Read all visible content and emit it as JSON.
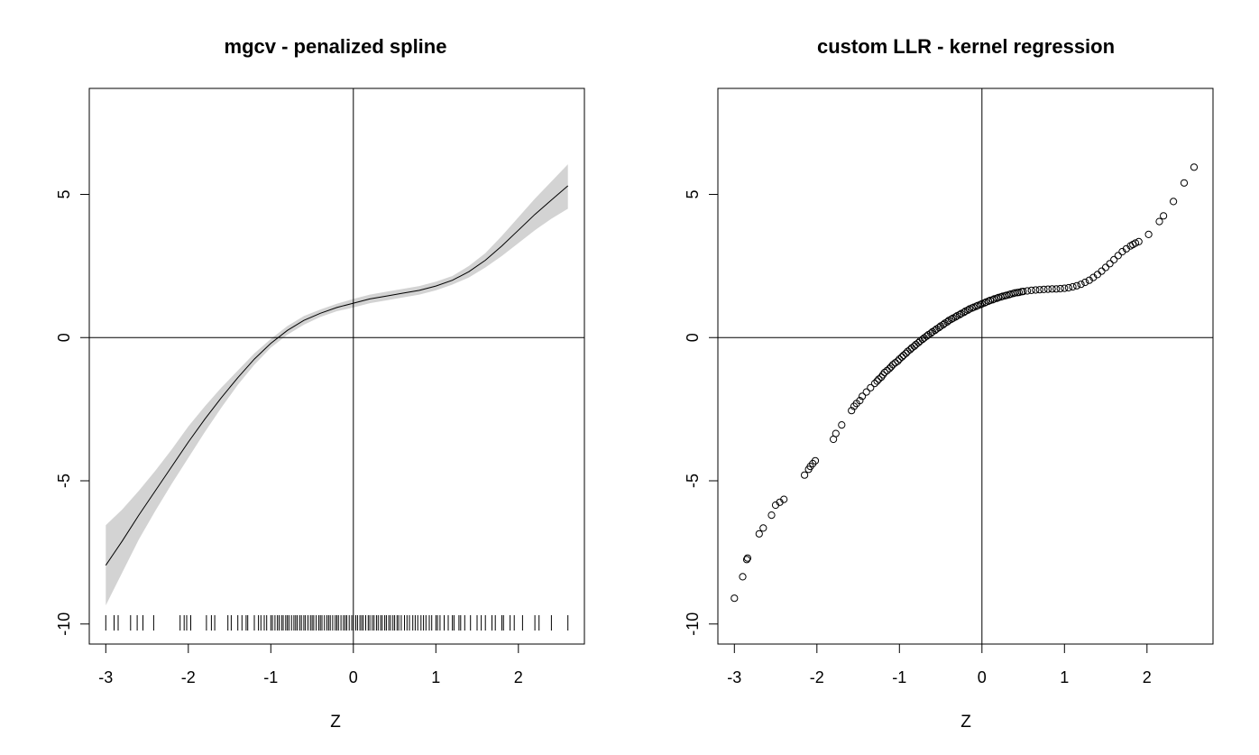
{
  "chart_data": [
    {
      "type": "line",
      "title": "mgcv - penalized spline",
      "xlabel": "Z",
      "ylabel": "",
      "xlim": [
        -3.2,
        2.8
      ],
      "ylim": [
        -10.7,
        8.7
      ],
      "xticks": [
        "-3",
        "-2",
        "-1",
        "0",
        "1",
        "2"
      ],
      "yticks": [
        "-10",
        "-5",
        "0",
        "5"
      ],
      "reference_lines": {
        "h": 0,
        "v": 0
      },
      "grid": false,
      "legend": "none",
      "colors": {
        "line": "#000000",
        "band": "#d3d3d3"
      },
      "series": [
        {
          "kind": "fit",
          "x": [
            -3.0,
            -2.8,
            -2.6,
            -2.4,
            -2.2,
            -2.0,
            -1.8,
            -1.6,
            -1.4,
            -1.2,
            -1.0,
            -0.8,
            -0.6,
            -0.4,
            -0.2,
            0.0,
            0.2,
            0.4,
            0.6,
            0.8,
            1.0,
            1.2,
            1.4,
            1.6,
            1.8,
            2.0,
            2.2,
            2.4,
            2.6
          ],
          "y": [
            -7.95,
            -7.1,
            -6.2,
            -5.35,
            -4.5,
            -3.65,
            -2.85,
            -2.1,
            -1.4,
            -0.75,
            -0.2,
            0.25,
            0.6,
            0.85,
            1.05,
            1.2,
            1.35,
            1.45,
            1.55,
            1.65,
            1.8,
            2.0,
            2.3,
            2.7,
            3.2,
            3.75,
            4.3,
            4.8,
            5.3
          ],
          "lower": [
            -9.35,
            -8.2,
            -7.05,
            -6.05,
            -5.1,
            -4.2,
            -3.3,
            -2.45,
            -1.65,
            -0.95,
            -0.35,
            0.1,
            0.45,
            0.72,
            0.92,
            1.05,
            1.2,
            1.3,
            1.4,
            1.5,
            1.65,
            1.85,
            2.1,
            2.45,
            2.85,
            3.3,
            3.75,
            4.15,
            4.5
          ],
          "upper": [
            -6.55,
            -6.0,
            -5.35,
            -4.65,
            -3.9,
            -3.1,
            -2.4,
            -1.75,
            -1.15,
            -0.55,
            -0.05,
            0.4,
            0.75,
            0.98,
            1.18,
            1.35,
            1.5,
            1.6,
            1.7,
            1.8,
            1.95,
            2.15,
            2.5,
            2.95,
            3.55,
            4.2,
            4.85,
            5.45,
            6.05
          ]
        }
      ],
      "rug_x": [
        -3.0,
        -2.9,
        -2.85,
        -2.7,
        -2.62,
        -2.55,
        -2.42,
        -2.1,
        -2.05,
        -2.02,
        -1.97,
        -1.78,
        -1.72,
        -1.68,
        -1.52,
        -1.48,
        -1.4,
        -1.35,
        -1.3,
        -1.28,
        -1.2,
        -1.15,
        -1.12,
        -1.08,
        -1.05,
        -1.0,
        -0.98,
        -0.95,
        -0.92,
        -0.9,
        -0.87,
        -0.85,
        -0.82,
        -0.8,
        -0.78,
        -0.75,
        -0.72,
        -0.7,
        -0.68,
        -0.65,
        -0.63,
        -0.6,
        -0.58,
        -0.55,
        -0.52,
        -0.5,
        -0.48,
        -0.45,
        -0.42,
        -0.4,
        -0.38,
        -0.35,
        -0.32,
        -0.3,
        -0.28,
        -0.25,
        -0.22,
        -0.2,
        -0.18,
        -0.15,
        -0.12,
        -0.1,
        -0.08,
        -0.05,
        -0.02,
        0.0,
        0.03,
        0.05,
        0.08,
        0.1,
        0.12,
        0.15,
        0.18,
        0.2,
        0.23,
        0.25,
        0.28,
        0.3,
        0.33,
        0.35,
        0.38,
        0.4,
        0.43,
        0.45,
        0.48,
        0.5,
        0.53,
        0.55,
        0.58,
        0.62,
        0.65,
        0.68,
        0.72,
        0.75,
        0.78,
        0.82,
        0.85,
        0.88,
        0.92,
        0.95,
        1.0,
        1.02,
        1.05,
        1.1,
        1.15,
        1.2,
        1.22,
        1.28,
        1.3,
        1.35,
        1.42,
        1.5,
        1.55,
        1.6,
        1.68,
        1.72,
        1.8,
        1.82,
        1.9,
        1.95,
        2.05,
        2.2,
        2.25,
        2.4,
        2.6
      ]
    },
    {
      "type": "scatter",
      "title": "custom LLR - kernel regression",
      "xlabel": "Z",
      "ylabel": "",
      "xlim": [
        -3.2,
        2.8
      ],
      "ylim": [
        -10.7,
        8.7
      ],
      "xticks": [
        "-3",
        "-2",
        "-1",
        "0",
        "1",
        "2"
      ],
      "yticks": [
        "-10",
        "-5",
        "0",
        "5"
      ],
      "reference_lines": {
        "h": 0,
        "v": 0
      },
      "grid": false,
      "legend": "none",
      "colors": {
        "point": "#000000"
      },
      "series": [
        {
          "kind": "points",
          "x": [
            -3.0,
            -2.9,
            -2.85,
            -2.84,
            -2.7,
            -2.65,
            -2.55,
            -2.5,
            -2.45,
            -2.4,
            -2.15,
            -2.1,
            -2.08,
            -2.05,
            -2.02,
            -1.8,
            -1.77,
            -1.7,
            -1.58,
            -1.55,
            -1.52,
            -1.48,
            -1.45,
            -1.4,
            -1.35,
            -1.3,
            -1.27,
            -1.25,
            -1.22,
            -1.2,
            -1.18,
            -1.15,
            -1.12,
            -1.1,
            -1.08,
            -1.05,
            -1.02,
            -1.0,
            -0.97,
            -0.95,
            -0.92,
            -0.9,
            -0.87,
            -0.85,
            -0.82,
            -0.8,
            -0.77,
            -0.75,
            -0.72,
            -0.7,
            -0.67,
            -0.65,
            -0.62,
            -0.6,
            -0.57,
            -0.55,
            -0.52,
            -0.5,
            -0.47,
            -0.45,
            -0.42,
            -0.4,
            -0.37,
            -0.35,
            -0.32,
            -0.3,
            -0.27,
            -0.25,
            -0.22,
            -0.2,
            -0.17,
            -0.15,
            -0.12,
            -0.1,
            -0.07,
            -0.05,
            -0.02,
            0.0,
            0.03,
            0.05,
            0.08,
            0.1,
            0.13,
            0.15,
            0.18,
            0.2,
            0.23,
            0.25,
            0.28,
            0.3,
            0.33,
            0.35,
            0.38,
            0.4,
            0.43,
            0.45,
            0.48,
            0.5,
            0.55,
            0.6,
            0.65,
            0.7,
            0.75,
            0.8,
            0.85,
            0.9,
            0.95,
            1.0,
            1.05,
            1.1,
            1.15,
            1.2,
            1.25,
            1.3,
            1.35,
            1.4,
            1.45,
            1.5,
            1.55,
            1.6,
            1.65,
            1.7,
            1.75,
            1.8,
            1.83,
            1.86,
            1.9,
            2.02,
            2.15,
            2.2,
            2.32,
            2.45,
            2.57
          ],
          "y": [
            -9.1,
            -8.35,
            -7.75,
            -7.7,
            -6.85,
            -6.65,
            -6.2,
            -5.85,
            -5.75,
            -5.65,
            -4.8,
            -4.6,
            -4.5,
            -4.4,
            -4.3,
            -3.55,
            -3.35,
            -3.05,
            -2.55,
            -2.4,
            -2.3,
            -2.2,
            -2.05,
            -1.9,
            -1.75,
            -1.6,
            -1.52,
            -1.45,
            -1.38,
            -1.3,
            -1.22,
            -1.15,
            -1.08,
            -1.02,
            -0.95,
            -0.88,
            -0.82,
            -0.75,
            -0.68,
            -0.62,
            -0.55,
            -0.48,
            -0.42,
            -0.36,
            -0.3,
            -0.24,
            -0.18,
            -0.12,
            -0.06,
            -0.01,
            0.05,
            0.1,
            0.15,
            0.2,
            0.25,
            0.3,
            0.35,
            0.4,
            0.45,
            0.5,
            0.55,
            0.6,
            0.64,
            0.68,
            0.72,
            0.76,
            0.8,
            0.84,
            0.88,
            0.92,
            0.96,
            1.0,
            1.03,
            1.06,
            1.09,
            1.12,
            1.15,
            1.18,
            1.21,
            1.24,
            1.27,
            1.3,
            1.32,
            1.35,
            1.37,
            1.4,
            1.42,
            1.44,
            1.46,
            1.48,
            1.5,
            1.52,
            1.54,
            1.56,
            1.57,
            1.58,
            1.6,
            1.61,
            1.63,
            1.65,
            1.66,
            1.67,
            1.68,
            1.69,
            1.7,
            1.7,
            1.71,
            1.72,
            1.74,
            1.77,
            1.81,
            1.86,
            1.93,
            2.0,
            2.1,
            2.2,
            2.32,
            2.45,
            2.58,
            2.72,
            2.86,
            3.0,
            3.1,
            3.2,
            3.25,
            3.3,
            3.35,
            3.6,
            4.05,
            4.25,
            4.75,
            5.4,
            5.95
          ]
        }
      ]
    }
  ]
}
